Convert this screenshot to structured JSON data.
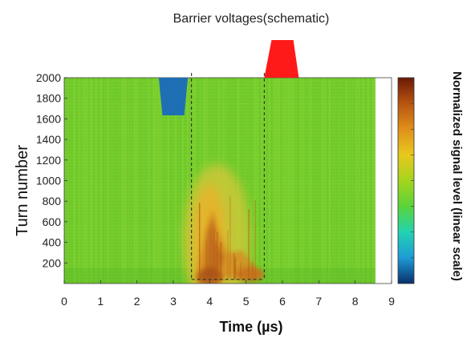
{
  "chart_data": {
    "type": "heatmap",
    "title": "Barrier voltages(schematic)",
    "xlabel": "Time (µs)",
    "ylabel": "Turn number",
    "colorbar_label": "Normalized signal level (linear scale)",
    "xlim": [
      0,
      9
    ],
    "ylim": [
      0,
      2000
    ],
    "x_ticks": [
      "0",
      "1",
      "2",
      "3",
      "4",
      "5",
      "6",
      "7",
      "8",
      "9"
    ],
    "y_ticks": [
      "200",
      "400",
      "600",
      "800",
      "1000",
      "1200",
      "1400",
      "1600",
      "1800",
      "2000"
    ],
    "y_tick_values": [
      200,
      400,
      600,
      800,
      1000,
      1200,
      1400,
      1600,
      1800,
      2000
    ],
    "data_extent_x": [
      0,
      8.55
    ],
    "gaps_x": [
      3.5,
      5.5
    ],
    "barriers": [
      {
        "polarity": "negative",
        "color": "#1f6fb5",
        "x_start": 2.6,
        "x_end": 3.4,
        "x_flat_start": 2.7,
        "x_flat_end": 3.3
      },
      {
        "polarity": "positive",
        "color": "#ff1a1a",
        "x_start": 5.5,
        "x_end": 6.45,
        "x_flat_start": 5.7,
        "x_flat_end": 6.3
      }
    ],
    "colormap": [
      "#08306b",
      "#1f9bd6",
      "#22d3b0",
      "#5ad43a",
      "#a4d41e",
      "#e8c81e",
      "#e0901a",
      "#b85412",
      "#6a1a06"
    ],
    "grid": false,
    "colorbar_placement": "right"
  }
}
